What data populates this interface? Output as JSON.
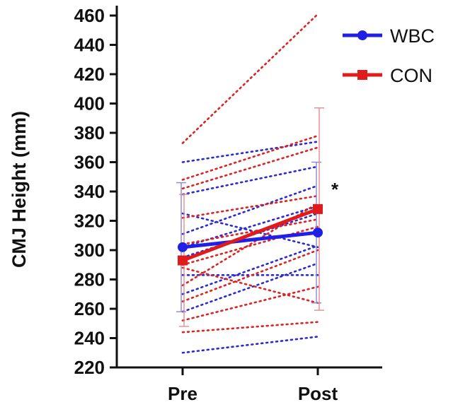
{
  "chart_data": {
    "type": "line",
    "title": "",
    "ylabel": "CMJ Height (mm)",
    "xlabel": "",
    "categories": [
      "Pre",
      "Post"
    ],
    "ylim": [
      220,
      460
    ],
    "yticks": [
      220,
      240,
      260,
      280,
      300,
      320,
      340,
      360,
      380,
      400,
      420,
      440,
      460
    ],
    "legend_position": "top-right",
    "significance_marker": "*",
    "series": [
      {
        "name": "WBC",
        "color": "#1f1fe6",
        "marker": "circle",
        "values": [
          302,
          312
        ],
        "error": [
          44,
          48
        ]
      },
      {
        "name": "CON",
        "color": "#e01b1b",
        "marker": "square",
        "values": [
          293,
          328
        ],
        "error": [
          45,
          69
        ]
      }
    ],
    "individual": {
      "WBC": {
        "color": "#2a2ad0",
        "lines": [
          [
            360,
            374
          ],
          [
            338,
            357
          ],
          [
            325,
            302
          ],
          [
            311,
            344
          ],
          [
            302,
            330
          ],
          [
            295,
            325
          ],
          [
            283,
            283
          ],
          [
            270,
            303
          ],
          [
            258,
            291
          ],
          [
            230,
            241
          ]
        ]
      },
      "CON": {
        "color": "#dd2222",
        "lines": [
          [
            373,
            461
          ],
          [
            348,
            378
          ],
          [
            342,
            370
          ],
          [
            322,
            337
          ],
          [
            304,
            321
          ],
          [
            290,
            316
          ],
          [
            276,
            332
          ],
          [
            265,
            300
          ],
          [
            252,
            275
          ],
          [
            244,
            251
          ],
          [
            288,
            264
          ]
        ]
      }
    }
  }
}
